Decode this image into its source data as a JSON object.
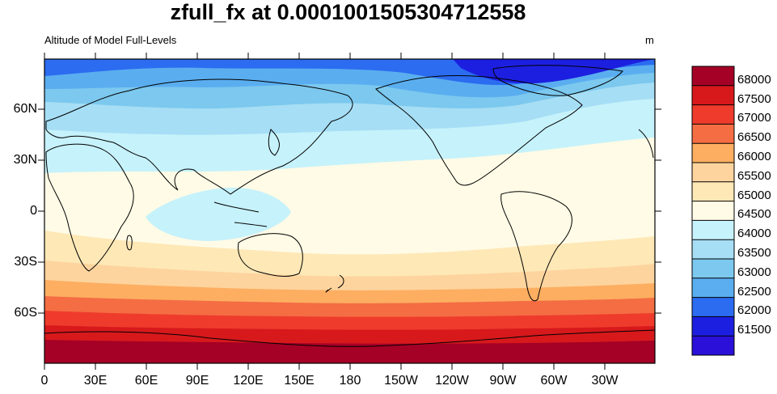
{
  "title": "zfull_fx at 0.0001001505304712558",
  "subtitle": "Altitude of Model Full-Levels",
  "units": "m",
  "lat_labels": [
    "60N",
    "30N",
    "0",
    "30S",
    "60S"
  ],
  "lon_labels": [
    "0",
    "30E",
    "60E",
    "90E",
    "120E",
    "150E",
    "180",
    "150W",
    "120W",
    "90W",
    "60W",
    "30W"
  ],
  "colorbar": {
    "labels": [
      "68000",
      "67500",
      "67000",
      "66500",
      "66000",
      "65500",
      "65000",
      "64500",
      "64000",
      "63500",
      "63000",
      "62500",
      "62000",
      "61500"
    ],
    "colors": [
      "#a50026",
      "#d7191c",
      "#ef3b2c",
      "#f46d43",
      "#fdae61",
      "#fdd49e",
      "#fee8b6",
      "#fffbe6",
      "#c6f2fb",
      "#a6def5",
      "#7cc8ee",
      "#5aaef0",
      "#2b6cf0",
      "#1c1fe0",
      "#2a10d8"
    ]
  }
}
